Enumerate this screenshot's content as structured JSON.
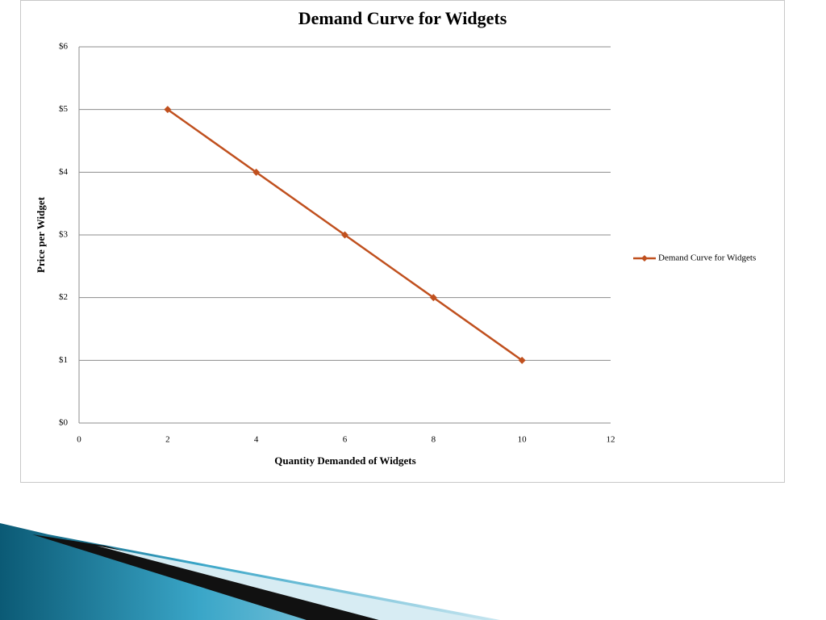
{
  "chart_data": {
    "type": "line",
    "title": "Demand Curve for Widgets",
    "xlabel": "Quantity Demanded of Widgets",
    "ylabel": "Price per Widget",
    "x": [
      2,
      4,
      6,
      8,
      10
    ],
    "series": [
      {
        "name": "Demand Curve for Widgets",
        "color": "#c0501e",
        "values": [
          5,
          4,
          3,
          2,
          1
        ]
      }
    ],
    "xlim": [
      0,
      12
    ],
    "xticks": [
      0,
      2,
      4,
      6,
      8,
      10,
      12
    ],
    "ylim": [
      0,
      6
    ],
    "yticks": [
      {
        "value": 0,
        "label": "$0"
      },
      {
        "value": 1,
        "label": "$1"
      },
      {
        "value": 2,
        "label": "$2"
      },
      {
        "value": 3,
        "label": "$3"
      },
      {
        "value": 4,
        "label": "$4"
      },
      {
        "value": 5,
        "label": "$5"
      },
      {
        "value": 6,
        "label": "$6"
      }
    ],
    "grid": true,
    "legend": "right"
  }
}
